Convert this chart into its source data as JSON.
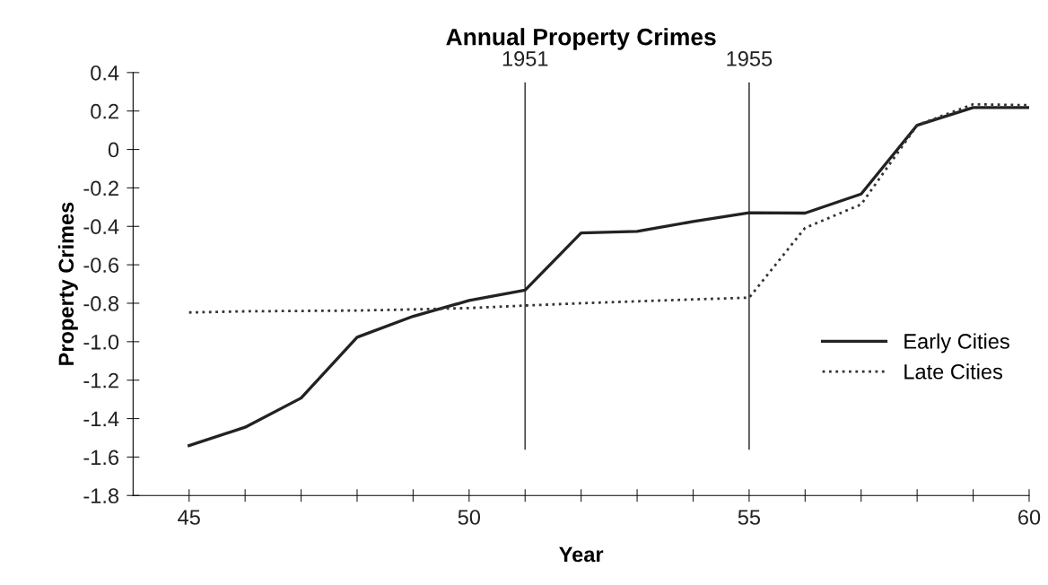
{
  "chart_data": {
    "type": "line",
    "title": "Annual Property Crimes",
    "xlabel": "Year",
    "ylabel": "Property Crimes",
    "x": [
      1945,
      1946,
      1947,
      1948,
      1949,
      1950,
      1951,
      1952,
      1953,
      1954,
      1955,
      1956,
      1957,
      1958,
      1959,
      1960
    ],
    "series": [
      {
        "name": "Early Cities",
        "color": "#222222",
        "line_style": "solid",
        "values": [
          -1.54,
          -1.445,
          -1.293,
          -0.977,
          -0.868,
          -0.786,
          -0.732,
          -0.434,
          -0.426,
          -0.375,
          -0.329,
          -0.331,
          -0.232,
          0.126,
          0.218,
          0.218
        ]
      },
      {
        "name": "Late Cities",
        "color": "#333333",
        "line_style": "dotted",
        "values": [
          -0.848,
          -0.842,
          -0.84,
          -0.838,
          -0.832,
          -0.825,
          -0.812,
          -0.8,
          -0.79,
          -0.78,
          -0.771,
          -0.408,
          -0.286,
          0.126,
          0.235,
          0.23
        ]
      }
    ],
    "xlim": [
      1944,
      1960
    ],
    "ylim": [
      -1.8,
      0.4
    ],
    "xticks": [
      {
        "value": 1945,
        "label": "45"
      },
      {
        "value": 1946,
        "label": null
      },
      {
        "value": 1947,
        "label": null
      },
      {
        "value": 1948,
        "label": null
      },
      {
        "value": 1949,
        "label": null
      },
      {
        "value": 1950,
        "label": "50"
      },
      {
        "value": 1951,
        "label": null
      },
      {
        "value": 1952,
        "label": null
      },
      {
        "value": 1953,
        "label": null
      },
      {
        "value": 1954,
        "label": null
      },
      {
        "value": 1955,
        "label": "55"
      },
      {
        "value": 1956,
        "label": null
      },
      {
        "value": 1957,
        "label": null
      },
      {
        "value": 1958,
        "label": null
      },
      {
        "value": 1959,
        "label": null
      },
      {
        "value": 1960,
        "label": "60"
      }
    ],
    "yticks": [
      0.4,
      0.2,
      0,
      -0.2,
      -0.4,
      -0.6,
      -0.8,
      {
        "value": -1.0,
        "label": "-1.0"
      },
      -1.2,
      -1.4,
      -1.6,
      -1.8
    ],
    "ref_lines": [
      {
        "axis": "x",
        "value": 1951,
        "label": "1951",
        "color": "#444444"
      },
      {
        "axis": "x",
        "value": 1955,
        "label": "1955",
        "color": "#444444"
      }
    ],
    "grid": false,
    "legend": "right",
    "marker": "none"
  }
}
